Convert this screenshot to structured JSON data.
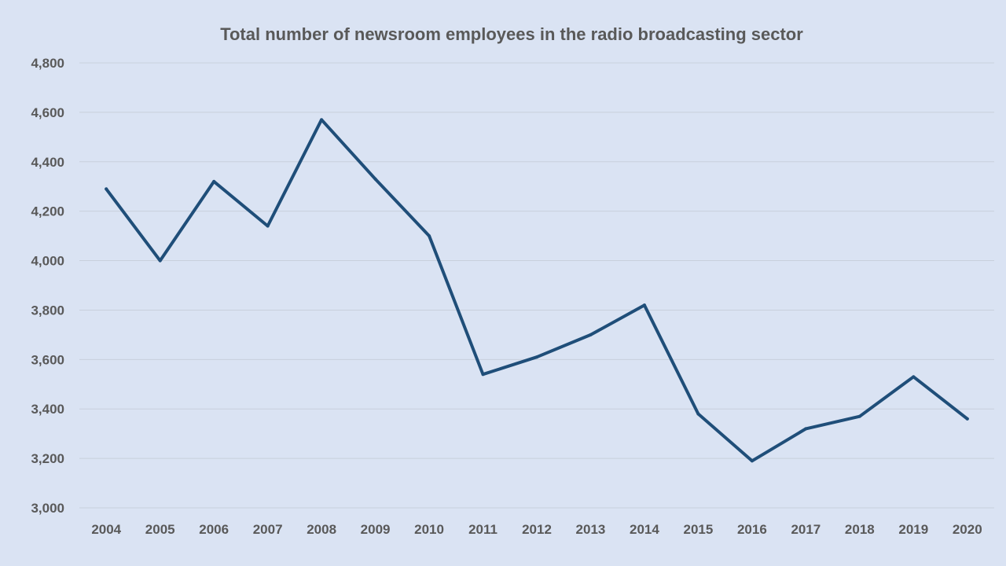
{
  "chart_data": {
    "type": "line",
    "title": "Total number of newsroom employees in the radio broadcasting sector",
    "xlabel": "",
    "ylabel": "",
    "categories": [
      "2004",
      "2005",
      "2006",
      "2007",
      "2008",
      "2009",
      "2010",
      "2011",
      "2012",
      "2013",
      "2014",
      "2015",
      "2016",
      "2017",
      "2018",
      "2019",
      "2020"
    ],
    "series": [
      {
        "values": [
          4290,
          4000,
          4320,
          4140,
          4570,
          4330,
          4100,
          3540,
          3610,
          3700,
          3820,
          3380,
          3190,
          3320,
          3370,
          3530,
          3360
        ]
      }
    ],
    "ylim": [
      3000,
      4800
    ],
    "y_ticks": [
      3000,
      3200,
      3400,
      3600,
      3800,
      4000,
      4200,
      4400,
      4600,
      4800
    ],
    "y_tick_labels": [
      "3,000",
      "3,200",
      "3,400",
      "3,600",
      "3,800",
      "4,000",
      "4,200",
      "4,400",
      "4,600",
      "4,800"
    ],
    "grid": true,
    "legend": "none",
    "colors": {
      "background": "#dae3f3",
      "line": "#1f4e79",
      "text": "#595959",
      "grid": "#c8d0dc"
    }
  }
}
